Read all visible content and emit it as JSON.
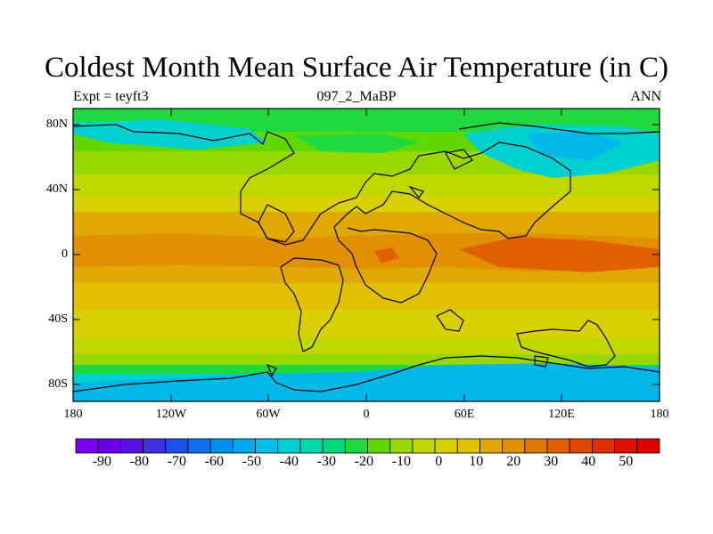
{
  "title": "Coldest Month Mean Surface Air Temperature (in C)",
  "subtitle_left": "Expt = teyft3",
  "subtitle_center": "097_2_MaBP",
  "subtitle_right": "ANN",
  "lat_ticks": [
    "80N",
    "40N",
    "0",
    "40S",
    "80S"
  ],
  "lon_ticks": [
    "180",
    "120W",
    "60W",
    "0",
    "60E",
    "120E",
    "180"
  ],
  "colorbar_labels": [
    "-90",
    "-80",
    "-70",
    "-60",
    "-50",
    "-40",
    "-30",
    "-20",
    "-10",
    "0",
    "10",
    "20",
    "30",
    "40",
    "50"
  ],
  "colorbar_colors": [
    "#7a00f0",
    "#6a00e8",
    "#5a10e0",
    "#4030e0",
    "#2050e8",
    "#1070f0",
    "#0090f0",
    "#00a8f0",
    "#00c0e8",
    "#00d0d0",
    "#00d8a8",
    "#00d880",
    "#20d840",
    "#60d800",
    "#98d800",
    "#c0d800",
    "#d8d000",
    "#e0c000",
    "#e0a800",
    "#e09000",
    "#e07800",
    "#e06000",
    "#e04800",
    "#e03000",
    "#e01000",
    "#e00000"
  ],
  "map_colors": {
    "deep_blue": "#00b8e8",
    "cyan": "#00d0d0",
    "green": "#20d840",
    "lime": "#98d800",
    "yellow_green": "#c0d800",
    "yellow": "#d8d000",
    "gold": "#e0b000",
    "orange": "#e09000",
    "red_orange": "#e06000"
  }
}
